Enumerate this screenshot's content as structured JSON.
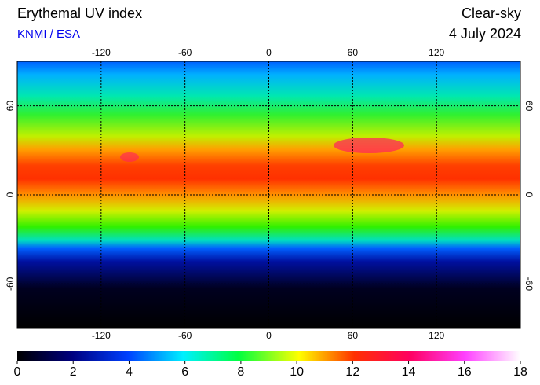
{
  "header": {
    "title": "Erythemal UV index",
    "source": "KNMI / ESA",
    "condition": "Clear-sky",
    "date": "4 July 2024"
  },
  "map": {
    "type": "map",
    "xlim": [
      -180,
      180
    ],
    "xticks": [
      -120,
      -60,
      0,
      60,
      120
    ],
    "ylim": [
      -90,
      90
    ],
    "yticks": [
      60,
      0,
      -60
    ],
    "colorbar": {
      "lim": [
        0,
        18
      ],
      "ticks": [
        0,
        2,
        4,
        6,
        8,
        10,
        12,
        14,
        16,
        18
      ]
    }
  }
}
